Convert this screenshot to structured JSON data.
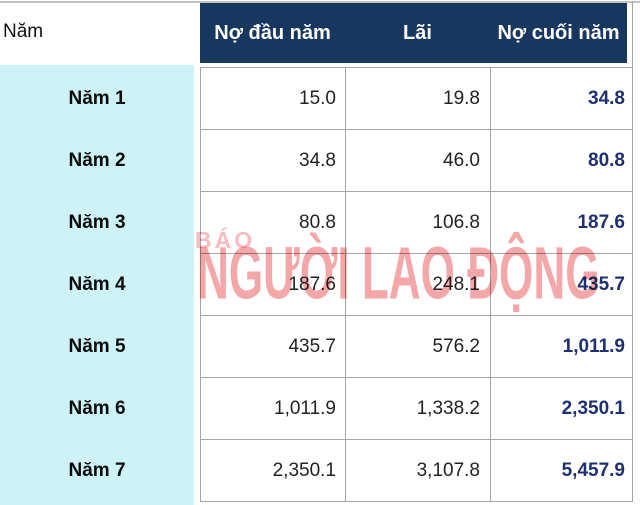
{
  "table": {
    "corner_header": "Năm",
    "columns": [
      "Nợ đầu năm",
      "Lãi",
      "Nợ cuối năm"
    ],
    "rows": [
      {
        "label": "Năm 1",
        "start": "15.0",
        "interest": "19.8",
        "end": "34.8"
      },
      {
        "label": "Năm 2",
        "start": "34.8",
        "interest": "46.0",
        "end": "80.8"
      },
      {
        "label": "Năm 3",
        "start": "80.8",
        "interest": "106.8",
        "end": "187.6"
      },
      {
        "label": "Năm 4",
        "start": "187.6",
        "interest": "248.1",
        "end": "435.7"
      },
      {
        "label": "Năm 5",
        "start": "435.7",
        "interest": "576.2",
        "end": "1,011.9"
      },
      {
        "label": "Năm 6",
        "start": "1,011.9",
        "interest": "1,338.2",
        "end": "2,350.1"
      },
      {
        "label": "Năm 7",
        "start": "2,350.1",
        "interest": "3,107.8",
        "end": "5,457.9"
      }
    ]
  },
  "watermark": {
    "line1": "BÁO",
    "line2": "NGƯỜI LAO ĐỘNG"
  },
  "colors": {
    "header_navy": "#17375e",
    "year_column_cyan": "#cdf3f7",
    "end_debt_navy": "#1f3070",
    "gridline_grey": "#a5a5a5",
    "watermark_pink": "#f3a7a9"
  },
  "chart_data": {
    "type": "table",
    "columns": [
      "Năm",
      "Nợ đầu năm",
      "Lãi",
      "Nợ cuối năm"
    ],
    "rows": [
      [
        "Năm 1",
        15.0,
        19.8,
        34.8
      ],
      [
        "Năm 2",
        34.8,
        46.0,
        80.8
      ],
      [
        "Năm 3",
        80.8,
        106.8,
        187.6
      ],
      [
        "Năm 4",
        187.6,
        248.1,
        435.7
      ],
      [
        "Năm 5",
        435.7,
        576.2,
        1011.9
      ],
      [
        "Năm 6",
        1011.9,
        1338.2,
        2350.1
      ],
      [
        "Năm 7",
        2350.1,
        3107.8,
        5457.9
      ]
    ]
  }
}
